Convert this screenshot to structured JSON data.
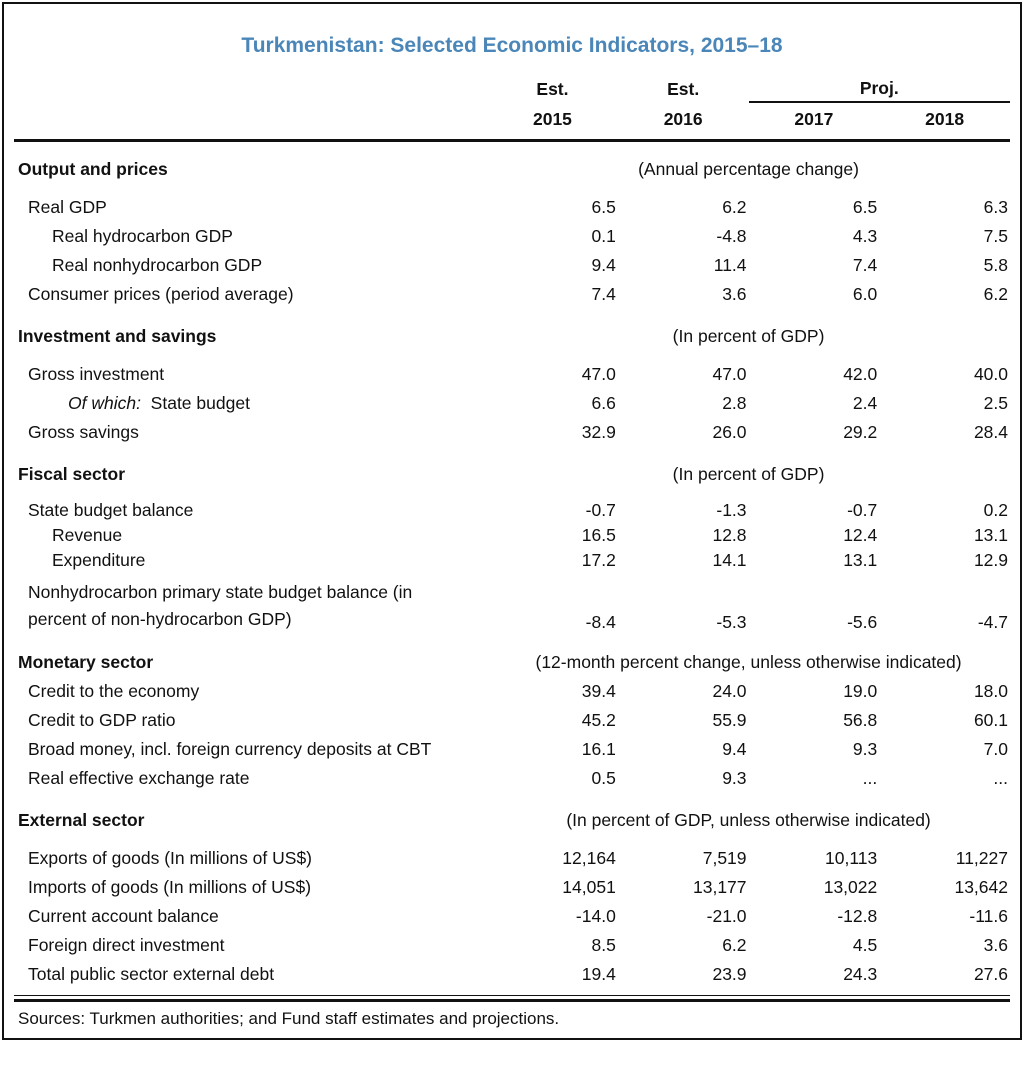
{
  "page": {
    "title": "Turkmenistan: Selected Economic Indicators, 2015–18",
    "title_color": "#4A86B8",
    "source_note": "Sources: Turkmen authorities; and Fund staff estimates and projections."
  },
  "header": {
    "col_groups": [
      {
        "label": "Est."
      },
      {
        "label": "Est."
      },
      {
        "label": "Proj.",
        "span": 2
      }
    ],
    "years": [
      "2015",
      "2016",
      "2017",
      "2018"
    ]
  },
  "sections": [
    {
      "name": "Output and prices",
      "unit_note": "(Annual percentage change)",
      "rows": [
        {
          "label": "Real GDP",
          "indent": 1,
          "values": [
            "6.5",
            "6.2",
            "6.5",
            "6.3"
          ]
        },
        {
          "label": "Real hydrocarbon GDP",
          "indent": 2,
          "values": [
            "0.1",
            "-4.8",
            "4.3",
            "7.5"
          ]
        },
        {
          "label": "Real nonhydrocarbon GDP",
          "indent": 2,
          "values": [
            "9.4",
            "11.4",
            "7.4",
            "5.8"
          ]
        },
        {
          "label": "Consumer prices (period average)",
          "indent": 1,
          "values": [
            "7.4",
            "3.6",
            "6.0",
            "6.2"
          ]
        }
      ]
    },
    {
      "name": "Investment and savings",
      "unit_note": "(In percent of GDP)",
      "rows": [
        {
          "label": "Gross investment",
          "indent": 1,
          "values": [
            "47.0",
            "47.0",
            "42.0",
            "40.0"
          ]
        },
        {
          "label_italic": "Of which:",
          "label": "State budget",
          "indent": 3,
          "values": [
            "6.6",
            "2.8",
            "2.4",
            "2.5"
          ]
        },
        {
          "label": "Gross savings",
          "indent": 1,
          "values": [
            "32.9",
            "26.0",
            "29.2",
            "28.4"
          ]
        }
      ]
    },
    {
      "name": "Fiscal sector",
      "unit_note": "(In percent of GDP)",
      "rows": [
        {
          "label": "State budget balance",
          "indent": 1,
          "values": [
            "-0.7",
            "-1.3",
            "-0.7",
            "0.2"
          ]
        },
        {
          "label": "Revenue",
          "indent": 2,
          "values": [
            "16.5",
            "12.8",
            "12.4",
            "13.1"
          ]
        },
        {
          "label": "Expenditure",
          "indent": 2,
          "values": [
            "17.2",
            "14.1",
            "13.1",
            "12.9"
          ]
        },
        {
          "label_lines": [
            "Nonhydrocarbon primary state budget balance (in",
            "percent of non-hydrocarbon GDP)"
          ],
          "indent": 1,
          "values": [
            "-8.4",
            "-5.3",
            "-5.6",
            "-4.7"
          ]
        }
      ]
    },
    {
      "name": "Monetary sector",
      "unit_note": "(12-month percent change, unless otherwise indicated)",
      "rows": [
        {
          "label": "Credit to the economy",
          "indent": 1,
          "values": [
            "39.4",
            "24.0",
            "19.0",
            "18.0"
          ]
        },
        {
          "label": "Credit to GDP ratio",
          "indent": 1,
          "values": [
            "45.2",
            "55.9",
            "56.8",
            "60.1"
          ]
        },
        {
          "label": "Broad money, incl. foreign currency deposits at CBT",
          "indent": 1,
          "values": [
            "16.1",
            "9.4",
            "9.3",
            "7.0"
          ]
        },
        {
          "label": "Real effective exchange rate",
          "indent": 1,
          "values": [
            "0.5",
            "9.3",
            "...",
            "..."
          ]
        }
      ]
    },
    {
      "name": "External sector",
      "unit_note": "(In percent of GDP, unless otherwise indicated)",
      "rows": [
        {
          "label": "Exports of goods (In millions of US$)",
          "indent": 1,
          "values": [
            "12,164",
            "7,519",
            "10,113",
            "11,227"
          ]
        },
        {
          "label": "Imports of goods (In millions of US$)",
          "indent": 1,
          "values": [
            "14,051",
            "13,177",
            "13,022",
            "13,642"
          ]
        },
        {
          "label": "Current account balance",
          "indent": 1,
          "values": [
            "-14.0",
            "-21.0",
            "-12.8",
            "-11.6"
          ]
        },
        {
          "label": "Foreign direct investment",
          "indent": 1,
          "values": [
            "8.5",
            "6.2",
            "4.5",
            "3.6"
          ]
        },
        {
          "label": "Total public sector external debt",
          "indent": 1,
          "values": [
            "19.4",
            "23.9",
            "24.3",
            "27.6"
          ]
        }
      ]
    }
  ]
}
